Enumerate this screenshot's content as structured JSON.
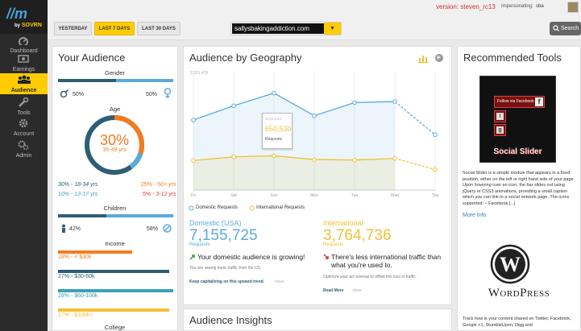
{
  "app": {
    "logo_text": "SOVRN",
    "version": "version: steven_rc13",
    "impersonating_label": "Impersonating:",
    "impersonating_user": "sba"
  },
  "nav": [
    {
      "label": "Dashboard",
      "icon": "dashboard-icon"
    },
    {
      "label": "Earnings",
      "icon": "earnings-icon"
    },
    {
      "label": "Audience",
      "icon": "audience-icon"
    },
    {
      "label": "Tools",
      "icon": "wrench-icon"
    },
    {
      "label": "Account",
      "icon": "gear-icon"
    },
    {
      "label": "Admin",
      "icon": "gears-icon"
    }
  ],
  "toolbar": {
    "yesterday": "YESTERDAY",
    "last7": "LAST 7 DAYS",
    "last30": "LAST 30 DAYS",
    "site": "sallysbakingaddiction.com",
    "search": "Search"
  },
  "audience": {
    "title": "Your Audience",
    "gender_label": "Gender",
    "male_pct": "50%",
    "female_pct": "50%",
    "age_label": "Age",
    "age_pct": "30%",
    "age_range": "35-49 yrs",
    "age_left": [
      {
        "pct": "30%",
        "range": "18-34 yrs"
      },
      {
        "pct": "10%",
        "range": "13-17 yrs"
      }
    ],
    "age_right": [
      {
        "pct": "25%",
        "range": "50+ yrs"
      },
      {
        "pct": "5%",
        "range": "3-12 yrs"
      }
    ],
    "children_label": "Children",
    "children_yes": "42%",
    "children_no": "58%",
    "income_label": "Income",
    "income": [
      {
        "label": "18% - < $30k",
        "value": 18
      },
      {
        "label": "27% - $30-60k",
        "value": 27
      },
      {
        "label": "28% - $60-100k",
        "value": 28
      },
      {
        "label": "27% - $100k+",
        "value": 27
      }
    ],
    "college_label": "College"
  },
  "geo": {
    "title": "Audience by Geography",
    "y_top": "2,261,475",
    "tooltip_date": "05.03.2015",
    "tooltip_value": "650,530",
    "tooltip_label": "Requests",
    "legend_domestic": "Domestic Requests",
    "legend_international": "International Requests",
    "domestic_label": "Domestic (USA)",
    "domestic_value": "7,155,725",
    "domestic_unit": "Requests",
    "international_label": "International",
    "international_value": "3,764,736",
    "international_unit": "Requests",
    "domestic_msg": "Your domestic audience is growing!",
    "domestic_sub": "You are seeing more traffic from the US.",
    "domestic_link": "Keep capitalizing on this upward trend.",
    "close": "close",
    "intl_msg": "There's less international traffic than what you're used to.",
    "intl_sub": "Optimize your ad revenue to offset this loss in traffic.",
    "intl_link": "Read More"
  },
  "chart_data": {
    "type": "line",
    "categories": [
      "Fri",
      "Sat",
      "Sun",
      "Mon",
      "Tue",
      "Wed",
      "Thu"
    ],
    "ylim": [
      0,
      2261475
    ],
    "series": [
      {
        "name": "Domestic Requests",
        "color": "#5aaadc",
        "values": [
          1330000,
          1600000,
          1840000,
          1410000,
          1660000,
          1680000,
          1050000
        ]
      },
      {
        "name": "International Requests",
        "color": "#f2c037",
        "values": [
          560000,
          630000,
          650530,
          580000,
          570000,
          600000,
          390000
        ]
      }
    ]
  },
  "insights": {
    "title": "Audience Insights"
  },
  "tools": {
    "title": "Recommended Tools",
    "follow": "Follow via Facebook",
    "slider_name": "Social Slider",
    "desc": "Social Slider is a simple module that appears in a fixed position, either on the left or right hand side of your page. Upon hovering over an icon, the bar slides out using jQuery or CSS3 animations, providing a small caption which you can link to a social network page. The icons supported: – Facebook [...]",
    "more": "More Info",
    "wp_name": "WordPress",
    "desc2": "Track how is your content shared on Twitter, Facebook, Google +1, StumbleUpon, Digg and"
  },
  "colors": {
    "accent": "#ffcc00",
    "blue": "#5aaadc",
    "navy": "#2d5e74",
    "orange": "#f47b20",
    "teal": "#3aa0b8"
  }
}
